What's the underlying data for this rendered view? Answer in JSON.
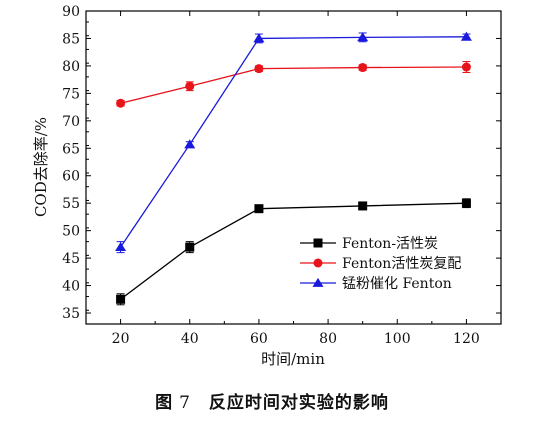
{
  "chart_data": {
    "type": "line",
    "xlabel": "时间/min",
    "ylabel": "COD去除率/%",
    "xlim": [
      10,
      130
    ],
    "ylim": [
      33,
      90
    ],
    "x_ticks": [
      20,
      40,
      60,
      80,
      100,
      120
    ],
    "y_ticks": [
      35,
      40,
      45,
      50,
      55,
      60,
      65,
      70,
      75,
      80,
      85,
      90
    ],
    "legend_position": "bottom-right",
    "grid": false,
    "series": [
      {
        "name": "Fenton-活性炭",
        "color": "#000000",
        "marker": "square",
        "x": [
          20,
          40,
          60,
          90,
          120
        ],
        "values": [
          37.5,
          47.0,
          54.0,
          54.5,
          55.0
        ],
        "errors": [
          1.0,
          1.0,
          0.5,
          0.5,
          0.8
        ]
      },
      {
        "name": "Fenton活性炭复配",
        "color": "#e8141c",
        "marker": "circle",
        "x": [
          20,
          40,
          60,
          90,
          120
        ],
        "values": [
          73.2,
          76.3,
          79.5,
          79.7,
          79.8
        ],
        "errors": [
          0.5,
          0.8,
          0.5,
          0.5,
          1.0
        ]
      },
      {
        "name": "锰粉催化 Fenton",
        "color": "#1a1adc",
        "marker": "triangle",
        "x": [
          20,
          40,
          60,
          90,
          120
        ],
        "values": [
          47.0,
          65.7,
          85.0,
          85.2,
          85.3
        ],
        "errors": [
          1.0,
          0.5,
          0.8,
          0.8,
          0.5
        ]
      }
    ]
  },
  "caption": {
    "figure_label": "图",
    "figure_number": "7",
    "title": "反应时间对实验的影响"
  }
}
